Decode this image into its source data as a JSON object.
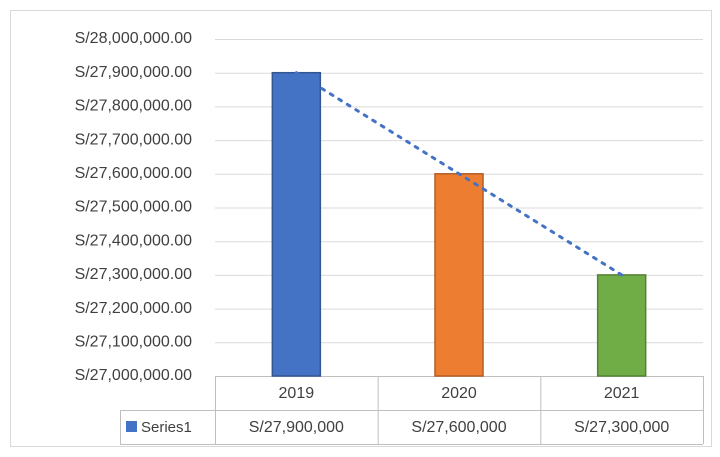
{
  "chart_data": {
    "type": "bar",
    "categories": [
      "2019",
      "2020",
      "2021"
    ],
    "series": [
      {
        "name": "Series1",
        "color": "#4472c4",
        "colors": [
          "#4472c4",
          "#ed7d31",
          "#70ad47"
        ],
        "values": [
          27900000,
          27600000,
          27300000
        ],
        "value_labels": [
          "S/27,900,000",
          "S/27,600,000",
          "S/27,300,000"
        ]
      }
    ],
    "ylim": [
      27000000,
      28000000
    ],
    "yticks": [
      {
        "value": 27000000,
        "label": "S/27,000,000.00"
      },
      {
        "value": 27100000,
        "label": "S/27,100,000.00"
      },
      {
        "value": 27200000,
        "label": "S/27,200,000.00"
      },
      {
        "value": 27300000,
        "label": "S/27,300,000.00"
      },
      {
        "value": 27400000,
        "label": "S/27,400,000.00"
      },
      {
        "value": 27500000,
        "label": "S/27,500,000.00"
      },
      {
        "value": 27600000,
        "label": "S/27,600,000.00"
      },
      {
        "value": 27700000,
        "label": "S/27,700,000.00"
      },
      {
        "value": 27800000,
        "label": "S/27,800,000.00"
      },
      {
        "value": 27900000,
        "label": "S/27,900,000.00"
      },
      {
        "value": 28000000,
        "label": "S/28,000,000.00"
      }
    ],
    "grid": true,
    "trendline": "linear",
    "data_table": true
  }
}
